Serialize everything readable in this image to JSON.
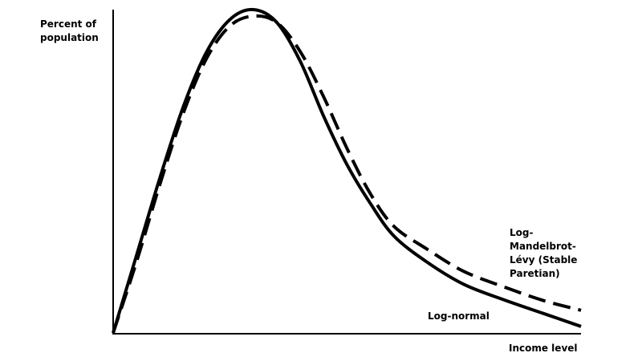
{
  "chart_data": {
    "type": "line",
    "y_label": "Percent of population",
    "x_label": "Income level",
    "x": [
      0,
      5,
      10,
      15,
      20,
      25,
      30,
      35,
      40,
      45,
      50,
      55,
      60,
      67,
      75,
      84,
      92,
      100
    ],
    "xlim": [
      0,
      100
    ],
    "ylim": [
      0,
      100
    ],
    "grid": false,
    "series": [
      {
        "name": "Log-normal",
        "color": "#000000",
        "dashed": false,
        "values": [
          0,
          24,
          48,
          70,
          87,
          97,
          100,
          96,
          84,
          67,
          52,
          40,
          30,
          22,
          15,
          10,
          6,
          2
        ]
      },
      {
        "name": "Log-Mandelbrot-Lévy (Stable Paretian)",
        "color": "#000000",
        "dashed": true,
        "values": [
          0,
          22,
          46,
          68,
          85,
          95,
          98,
          96,
          87,
          73,
          57,
          43,
          33,
          26,
          19,
          14,
          10,
          7
        ]
      }
    ]
  }
}
